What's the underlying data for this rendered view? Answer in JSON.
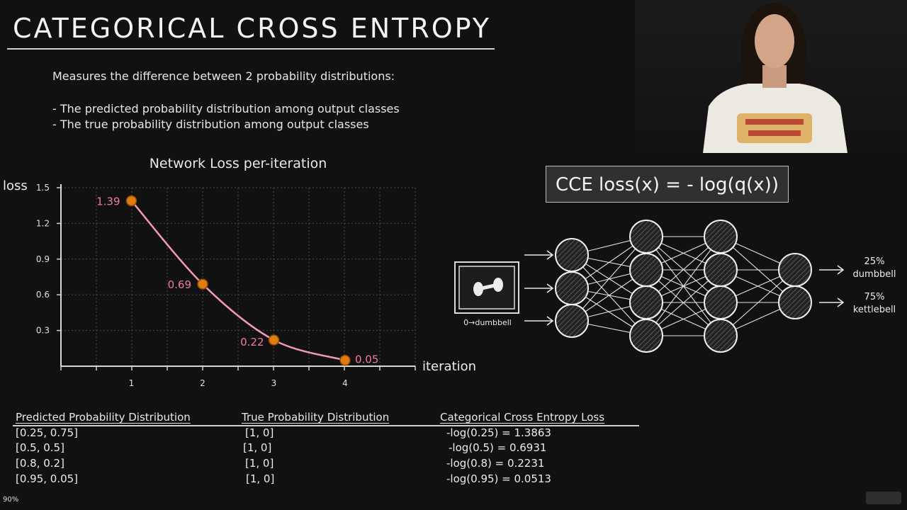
{
  "title": "CATEGORICAL CROSS ENTROPY",
  "intro": "Measures the difference between 2 probability distributions:",
  "bullets": [
    "- The predicted probability distribution among output classes",
    "- The true probability distribution among output classes"
  ],
  "formula": "CCE loss(x) = - log(q(x))",
  "chart_data": {
    "type": "line",
    "title": "Network Loss per-iteration",
    "xlabel": "iteration",
    "ylabel": "loss",
    "x": [
      1,
      2,
      3,
      4
    ],
    "xticks": [
      "1",
      "2",
      "3",
      "4"
    ],
    "yticks": [
      "0.3",
      "0.6",
      "0.9",
      "1.2",
      "1.5"
    ],
    "ylim": [
      0,
      1.5
    ],
    "series": [
      {
        "values": [
          1.39,
          0.69,
          0.22,
          0.05
        ],
        "labels": [
          "1.39",
          "0.69",
          "0.22",
          "0.05"
        ]
      }
    ],
    "line_color": "#f19ab4",
    "point_color": "#e07c10",
    "label_color": "#f07aa6",
    "grid": true
  },
  "network": {
    "input_caption": "0→dumbbell",
    "outputs": [
      {
        "percent": "25%",
        "label": "dumbbell"
      },
      {
        "percent": "75%",
        "label": "kettlebell"
      }
    ]
  },
  "table": {
    "headers": [
      "Predicted Probability Distribution",
      "True Probability Distribution",
      "Categorical Cross Entropy Loss"
    ],
    "rows": [
      [
        "[0.25, 0.75]",
        "[1, 0]",
        "-log(0.25) = 1.3863"
      ],
      [
        "[0.5, 0.5]",
        "[1, 0]",
        "-log(0.5) = 0.6931"
      ],
      [
        "[0.8, 0.2]",
        "[1, 0]",
        "-log(0.8) = 0.2231"
      ],
      [
        "[0.95, 0.05]",
        "[1, 0]",
        "-log(0.95) = 0.0513"
      ]
    ]
  },
  "zoom": "90%"
}
